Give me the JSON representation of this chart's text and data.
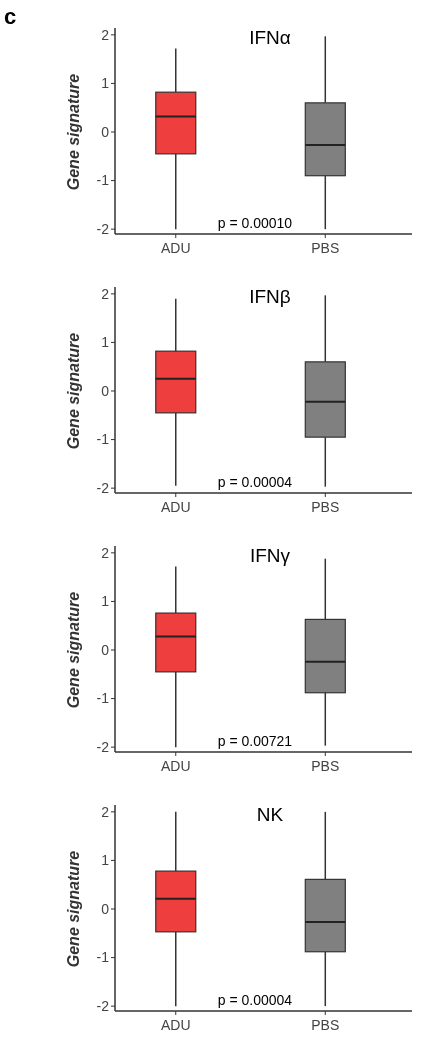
{
  "chart_data": [
    {
      "type": "box",
      "title": "IFNα",
      "ylabel": "Gene signature",
      "categories": [
        "ADU",
        "PBS"
      ],
      "colors": [
        "#ef3e3e",
        "#808080"
      ],
      "ylim": [
        -2.1,
        2.1
      ],
      "yticks": [
        -2,
        -1,
        0,
        1,
        2
      ],
      "annotations": [
        "c",
        "p = 0.00010"
      ],
      "boxes": [
        {
          "low": -2,
          "q1": -0.45,
          "median": 0.32,
          "q3": 0.82,
          "high": 1.72
        },
        {
          "low": -2,
          "q1": -0.9,
          "median": -0.27,
          "q3": 0.6,
          "high": 1.97
        }
      ]
    },
    {
      "type": "box",
      "title": "IFNβ",
      "ylabel": "Gene signature",
      "categories": [
        "ADU",
        "PBS"
      ],
      "colors": [
        "#ef3e3e",
        "#808080"
      ],
      "ylim": [
        -2.1,
        2.1
      ],
      "yticks": [
        -2,
        -1,
        0,
        1,
        2
      ],
      "annotations": [
        "p = 0.00004"
      ],
      "boxes": [
        {
          "low": -1.95,
          "q1": -0.45,
          "median": 0.25,
          "q3": 0.82,
          "high": 1.9
        },
        {
          "low": -1.97,
          "q1": -0.95,
          "median": -0.22,
          "q3": 0.6,
          "high": 1.97
        }
      ]
    },
    {
      "type": "box",
      "title": "IFNγ",
      "ylabel": "Gene signature",
      "categories": [
        "ADU",
        "PBS"
      ],
      "colors": [
        "#ef3e3e",
        "#808080"
      ],
      "ylim": [
        -2.1,
        2.1
      ],
      "yticks": [
        -2,
        -1,
        0,
        1,
        2
      ],
      "annotations": [
        "p = 0.00721"
      ],
      "boxes": [
        {
          "low": -2,
          "q1": -0.45,
          "median": 0.28,
          "q3": 0.76,
          "high": 1.72
        },
        {
          "low": -1.97,
          "q1": -0.88,
          "median": -0.24,
          "q3": 0.63,
          "high": 1.88
        }
      ]
    },
    {
      "type": "box",
      "title": "NK",
      "ylabel": "Gene signature",
      "categories": [
        "ADU",
        "PBS"
      ],
      "colors": [
        "#ef3e3e",
        "#808080"
      ],
      "ylim": [
        -2.1,
        2.1
      ],
      "yticks": [
        -2,
        -1,
        0,
        1,
        2
      ],
      "annotations": [
        "p = 0.00004"
      ],
      "boxes": [
        {
          "low": -2,
          "q1": -0.47,
          "median": 0.21,
          "q3": 0.78,
          "high": 2.0
        },
        {
          "low": -2,
          "q1": -0.88,
          "median": -0.27,
          "q3": 0.61,
          "high": 2.0
        }
      ]
    }
  ]
}
